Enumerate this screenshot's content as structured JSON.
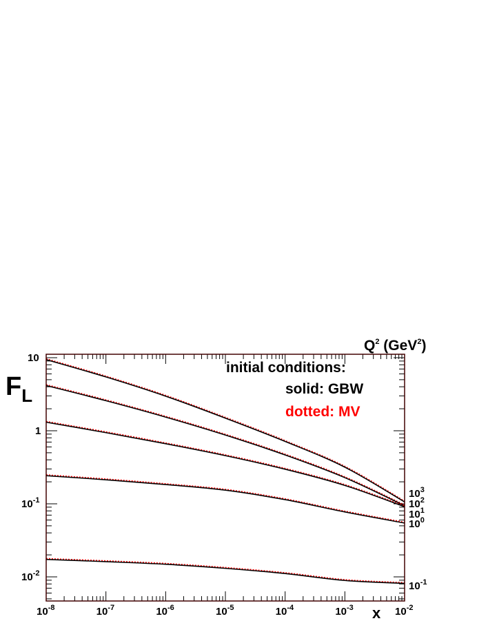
{
  "chart_data": {
    "type": "line",
    "x_scale": "log",
    "y_scale": "log",
    "xlim": [
      1e-08,
      0.01
    ],
    "ylim": [
      0.005,
      10
    ],
    "xlabel": "x",
    "ylabel": {
      "main": "F",
      "subscript": "L"
    },
    "legend_title": {
      "main": "Q",
      "sup1": "2",
      "mid": " (GeV",
      "sup2": "2",
      "end": ")"
    },
    "x_tick_labels": [
      {
        "base": "10",
        "exp": "-8"
      },
      {
        "base": "10",
        "exp": "-7"
      },
      {
        "base": "10",
        "exp": "-6"
      },
      {
        "base": "10",
        "exp": "-5"
      },
      {
        "base": "10",
        "exp": "-4"
      },
      {
        "base": "10",
        "exp": "-3"
      },
      {
        "base": "10",
        "exp": "-2"
      }
    ],
    "y_tick_labels": [
      {
        "text": "10",
        "exp": ""
      },
      {
        "text": "1",
        "exp": ""
      },
      {
        "text": "10",
        "exp": "-1"
      },
      {
        "text": "10",
        "exp": "-2"
      }
    ],
    "annotation": {
      "title": "initial conditions:",
      "solid": "solid: GBW",
      "dotted": "dotted: MV"
    },
    "colors": {
      "solid": "#000000",
      "dotted": "#ff0000",
      "frame": "#400000"
    },
    "x": [
      1e-08,
      1e-07,
      1e-06,
      1e-05,
      0.0001,
      0.001,
      0.01
    ],
    "series": [
      {
        "name": "10",
        "exp": "3",
        "values": [
          9.5,
          5.5,
          3.0,
          1.5,
          0.72,
          0.32,
          0.107
        ]
      },
      {
        "name": "10",
        "exp": "2",
        "values": [
          4.2,
          2.6,
          1.55,
          0.88,
          0.47,
          0.23,
          0.095
        ]
      },
      {
        "name": "10",
        "exp": "1",
        "values": [
          1.32,
          0.95,
          0.67,
          0.46,
          0.3,
          0.18,
          0.092
        ]
      },
      {
        "name": "10",
        "exp": "0",
        "values": [
          0.245,
          0.215,
          0.185,
          0.155,
          0.115,
          0.078,
          0.055
        ]
      },
      {
        "name": "10",
        "exp": "-1",
        "values": [
          0.0175,
          0.0163,
          0.015,
          0.0132,
          0.0112,
          0.009,
          0.0082
        ]
      }
    ]
  }
}
